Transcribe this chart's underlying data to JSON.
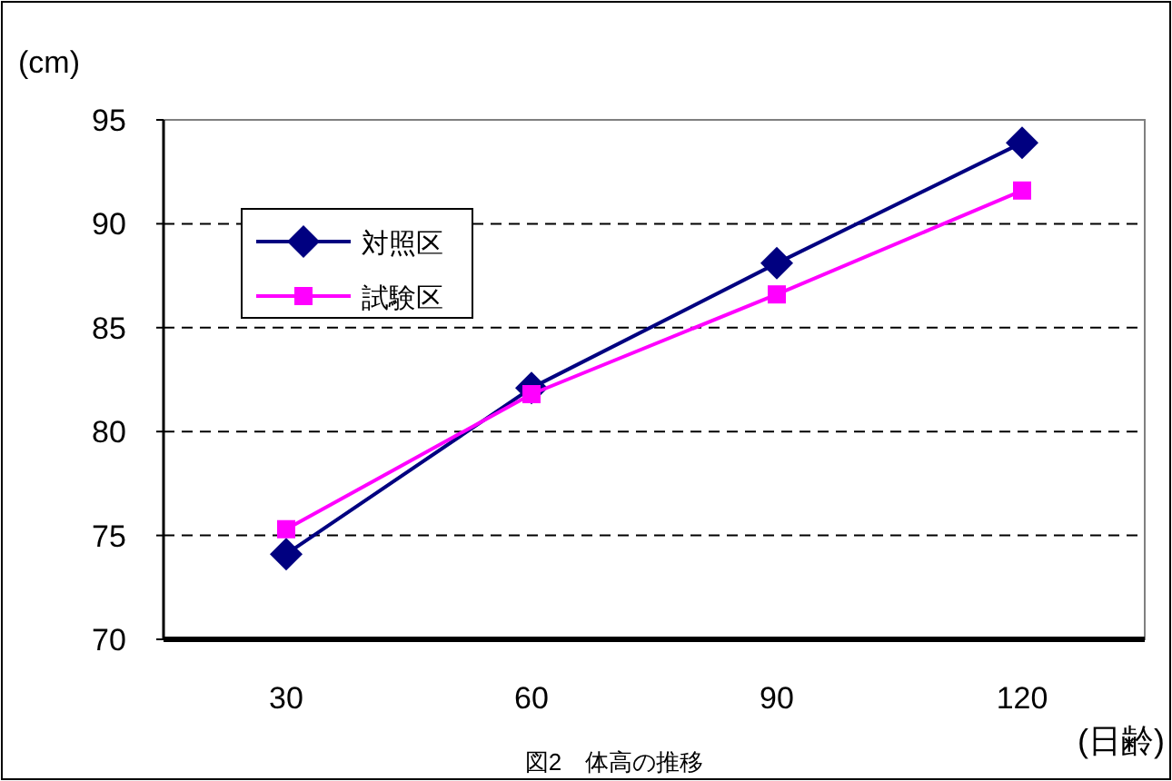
{
  "chart_data": {
    "type": "line",
    "title": "図2　体高の推移",
    "xlabel": "(日齢)",
    "ylabel": "(cm)",
    "categories": [
      "30",
      "60",
      "90",
      "120"
    ],
    "series": [
      {
        "name": "対照区",
        "color": "#000080",
        "marker": "diamond",
        "values": [
          74.1,
          82.1,
          88.1,
          93.9
        ]
      },
      {
        "name": "試験区",
        "color": "#ff00ff",
        "marker": "square",
        "values": [
          75.3,
          81.8,
          86.6,
          91.6
        ]
      }
    ],
    "ylim": [
      70,
      95
    ],
    "yticks": [
      70,
      75,
      80,
      85,
      90,
      95
    ],
    "grid": "y",
    "legend": "top left",
    "line_style": "solid"
  }
}
